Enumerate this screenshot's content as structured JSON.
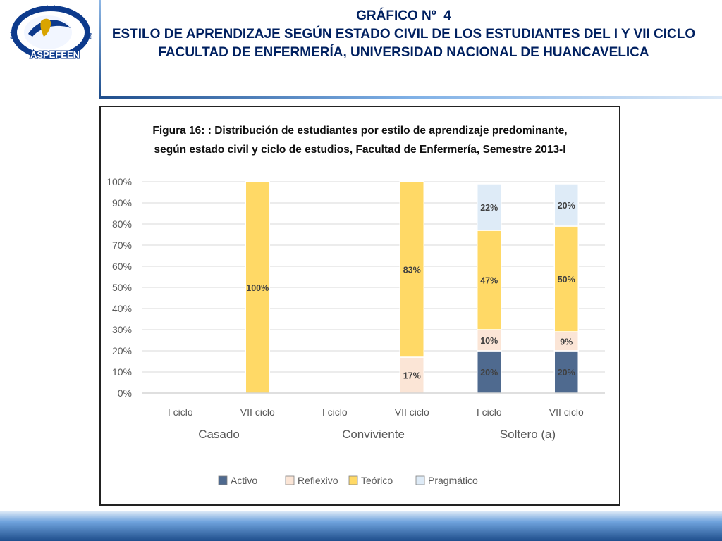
{
  "header": {
    "logo": {
      "ring_text": "Asociación Peruana de Facultades y Escuelas de Enfermería",
      "acronym": "ASPEFEEN"
    },
    "title_line1": "GRÁFICO Nº  4",
    "title_line2": "ESTILO DE APRENDIZAJE SEGÚN ESTADO CIVIL DE LOS ESTUDIANTES DEL I Y VII CICLO FACULTAD DE ENFERMERÍA, UNIVERSIDAD NACIONAL DE HUANCAVELICA"
  },
  "colors": {
    "Activo": "#4f6a8f",
    "Reflexivo": "#fbe5d6",
    "Teórico": "#ffd966",
    "Pragmático": "#deebf7",
    "title": "#002060"
  },
  "chart_data": {
    "type": "bar",
    "stacked": true,
    "title": "Figura 16: : Distribución de estudiantes por estilo de aprendizaje predominante, según estado civil y ciclo de estudios, Facultad de Enfermería, Semestre 2013-I",
    "title_lines": [
      "Figura 16: : Distribución de estudiantes por estilo de aprendizaje predominante,",
      "según estado civil y ciclo de estudios, Facultad de Enfermería, Semestre 2013-I"
    ],
    "categories": [
      "I ciclo",
      "VII ciclo",
      "I ciclo",
      "VII ciclo",
      "I ciclo",
      "VII ciclo"
    ],
    "groups": [
      {
        "label": "Casado",
        "start": 0,
        "end": 1
      },
      {
        "label": "Conviviente",
        "start": 2,
        "end": 3
      },
      {
        "label": "Soltero (a)",
        "start": 4,
        "end": 5
      }
    ],
    "series": [
      {
        "name": "Activo",
        "values": [
          0,
          0,
          0,
          0,
          20,
          20
        ],
        "labels": [
          "",
          "",
          "",
          "",
          "20%",
          "20%"
        ]
      },
      {
        "name": "Reflexivo",
        "values": [
          0,
          0,
          0,
          17,
          10,
          9
        ],
        "labels": [
          "",
          "",
          "",
          "17%",
          "10%",
          "9%"
        ]
      },
      {
        "name": "Teórico",
        "values": [
          0,
          100,
          0,
          83,
          47,
          50
        ],
        "labels": [
          "",
          "100%",
          "",
          "83%",
          "47%",
          "50%"
        ]
      },
      {
        "name": "Pragmático",
        "values": [
          0,
          0,
          0,
          0,
          22,
          20
        ],
        "labels": [
          "",
          "",
          "",
          "",
          "22%",
          "20%"
        ]
      }
    ],
    "ylim": [
      0,
      100
    ],
    "yticks": [
      "0%",
      "10%",
      "20%",
      "30%",
      "40%",
      "50%",
      "60%",
      "70%",
      "80%",
      "90%",
      "100%"
    ],
    "grid": true,
    "legend_position": "bottom"
  }
}
